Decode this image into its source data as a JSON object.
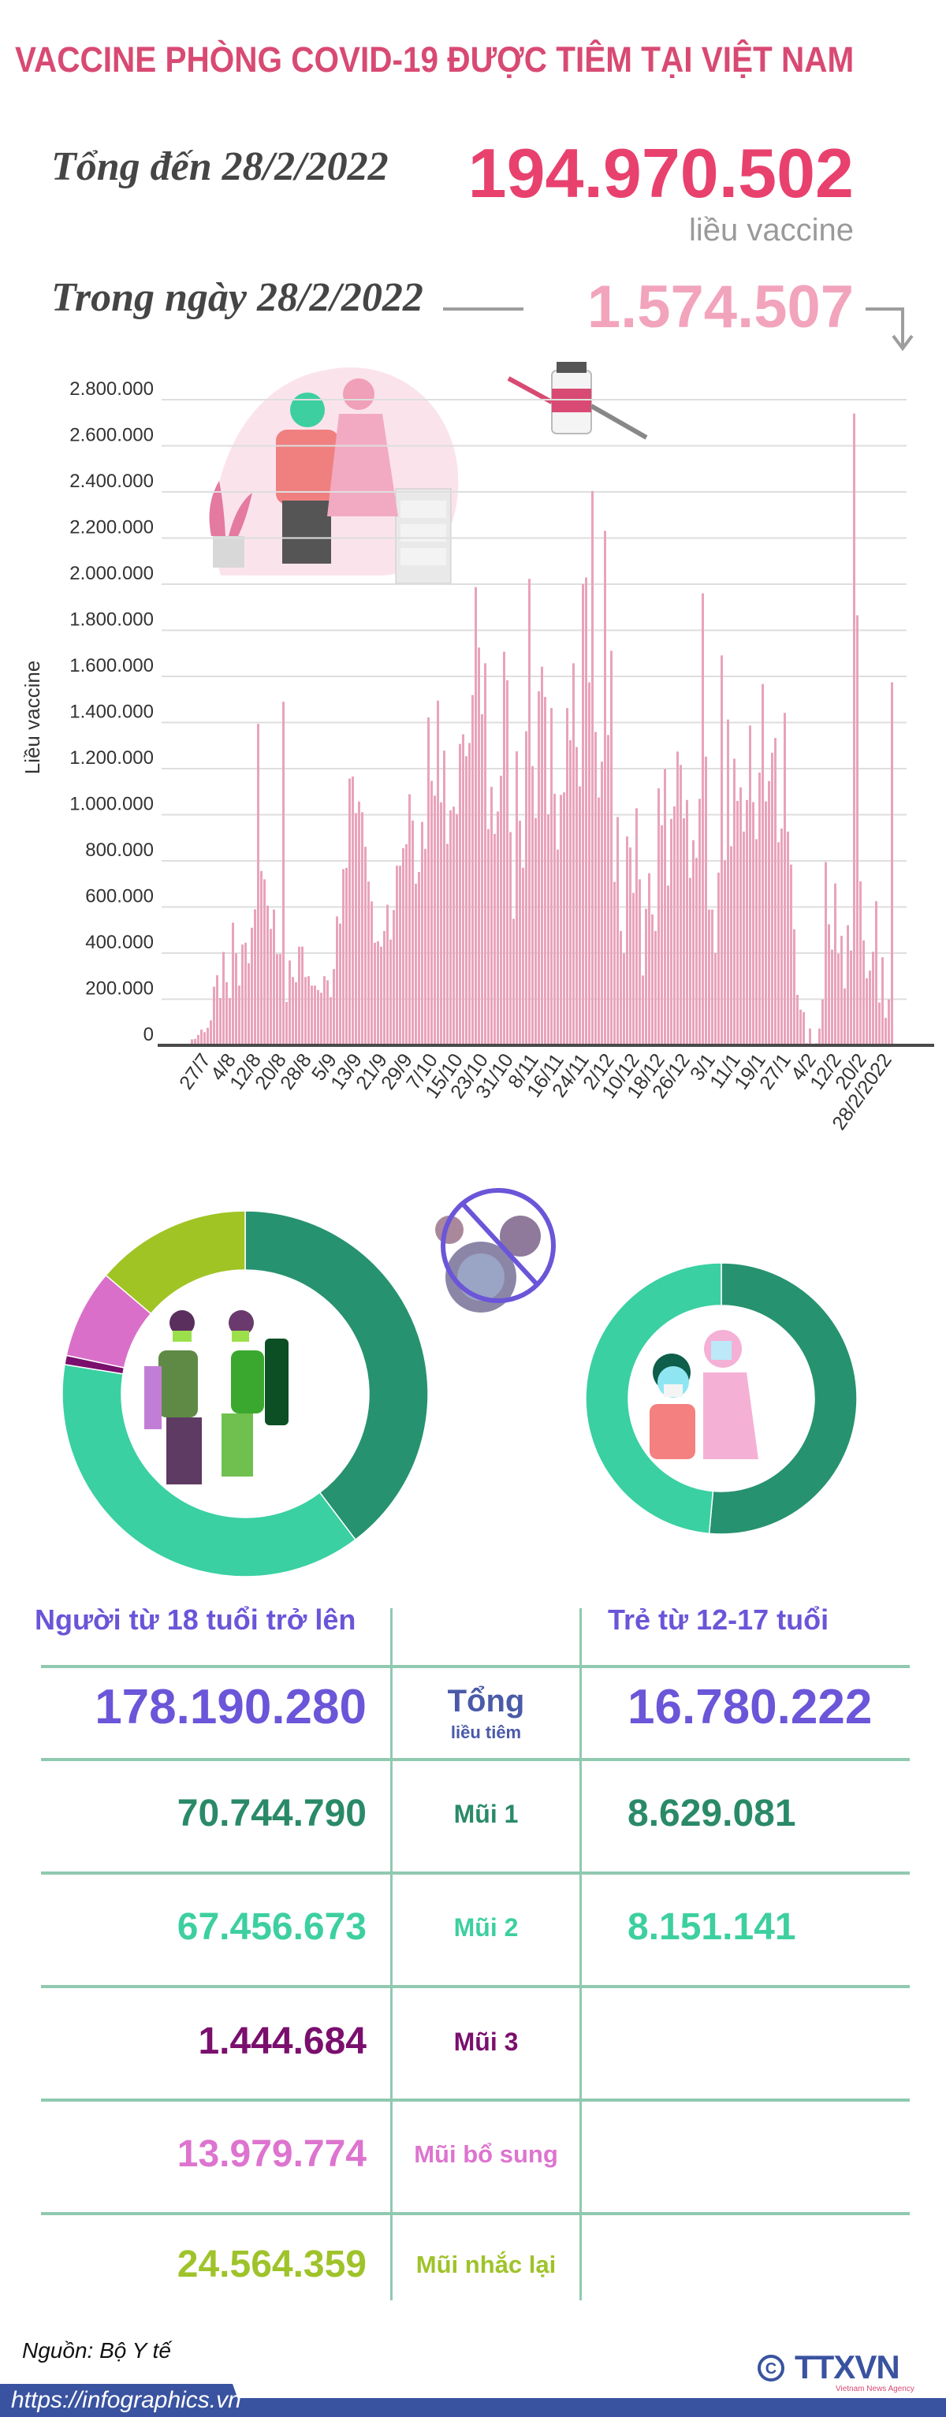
{
  "header": {
    "title": "VACCINE PHÒNG COVID-19 ĐƯỢC TIÊM TẠI VIỆT NAM",
    "total_label": "Tổng đến 28/2/2022",
    "total_value": "194.970.502",
    "total_unit": "liều vaccine",
    "daily_label": "Trong ngày 28/2/2022",
    "daily_value": "1.574.507",
    "colors": {
      "title": "#d84a73",
      "total": "#e8416e",
      "daily": "#f2a4bc"
    }
  },
  "chart_data": {
    "type": "bar",
    "ylabel": "Liều vaccine",
    "xlabel": "",
    "ylim": [
      0,
      2800000
    ],
    "grid": true,
    "yticks": [
      0,
      200000,
      400000,
      600000,
      800000,
      1000000,
      1200000,
      1400000,
      1600000,
      1800000,
      2000000,
      2200000,
      2400000,
      2600000,
      2800000
    ],
    "ytick_labels": [
      "0",
      "200.000",
      "400.000",
      "600.000",
      "800.000",
      "1.000.000",
      "1.200.000",
      "1.400.000",
      "1.600.000",
      "1.800.000",
      "2.000.000",
      "2.200.000",
      "2.400.000",
      "2.600.000",
      "2.800.000"
    ],
    "xtick_labels": [
      "27/7",
      "4/8",
      "12/8",
      "20/8",
      "28/8",
      "5/9",
      "13/9",
      "21/9",
      "29/9",
      "7/10",
      "15/10",
      "23/10",
      "31/10",
      "8/11",
      "16/11",
      "24/11",
      "2/12",
      "10/12",
      "18/12",
      "26/12",
      "3/1",
      "11/1",
      "19/1",
      "27/1",
      "4/2",
      "12/2",
      "20/2",
      "28/2/2022"
    ],
    "bar_color": "#e9a3bb",
    "values": [
      26000,
      28000,
      45000,
      68000,
      57000,
      76000,
      108000,
      254000,
      304000,
      205000,
      405000,
      274000,
      205000,
      532000,
      399000,
      259000,
      437000,
      445000,
      356000,
      510000,
      590000,
      1394000,
      756000,
      720000,
      606000,
      505000,
      589000,
      396000,
      396000,
      1490000,
      188000,
      368000,
      296000,
      274000,
      428000,
      428000,
      296000,
      300000,
      259000,
      259000,
      240000,
      228000,
      300000,
      282000,
      209000,
      331000,
      559000,
      528000,
      764000,
      770000,
      1157000,
      1166000,
      1007000,
      1057000,
      1011000,
      861000,
      710000,
      624000,
      445000,
      451000,
      428000,
      496000,
      610000,
      459000,
      587000,
      779000,
      779000,
      855000,
      872000,
      1089000,
      975000,
      701000,
      752000,
      969000,
      852000,
      1422000,
      1147000,
      1083000,
      1495000,
      1054000,
      1278000,
      874000,
      1019000,
      1035000,
      1003000,
      1307000,
      1349000,
      1254000,
      1311000,
      1519000,
      1987000,
      1725000,
      1436000,
      1657000,
      938000,
      1121000,
      917000,
      1014000,
      1169000,
      1707000,
      1583000,
      925000,
      549000,
      1275000,
      974000,
      770000,
      1362000,
      2023000,
      1211000,
      986000,
      1535000,
      1642000,
      1511000,
      1001000,
      1463000,
      1091000,
      849000,
      1086000,
      1097000,
      1463000,
      1323000,
      1657000,
      1294000,
      1123000,
      2000000,
      2029000,
      1574000,
      2404000,
      1359000,
      1075000,
      1230000,
      2231000,
      1346000,
      1711000,
      709000,
      990000,
      496000,
      399000,
      906000,
      858000,
      661000,
      1028000,
      720000,
      303000,
      592000,
      746000,
      568000,
      496000,
      1115000,
      954000,
      1198000,
      693000,
      982000,
      1036000,
      1274000,
      1216000,
      985000,
      1064000,
      726000,
      890000,
      813000,
      1069000,
      1960000,
      1252000,
      589000,
      589000,
      400000,
      749000,
      1691000,
      802000,
      1413000,
      863000,
      1243000,
      1060000,
      1119000,
      927000,
      1064000,
      1387000,
      1055000,
      894000,
      1183000,
      1567000,
      1058000,
      1146000,
      1269000,
      1333000,
      881000,
      940000,
      1442000,
      927000,
      784000,
      503000,
      219000,
      155000,
      144000,
      9000,
      73000,
      0,
      9000,
      73000,
      199000,
      795000,
      525000,
      415000,
      702000,
      397000,
      475000,
      247000,
      521000,
      411000,
      2740000,
      1865000,
      711000,
      455000,
      291000,
      324000,
      406000,
      625000,
      186000,
      382000,
      119000,
      199000,
      1574507
    ]
  },
  "table": {
    "adult_header": "Người từ 18 tuổi trở lên",
    "child_header": "Trẻ từ 12-17 tuổi",
    "header_color": "#6b55d8",
    "rows": [
      {
        "label": "Tổng",
        "sublabel": "liều tiêm",
        "adult": "178.190.280",
        "child": "16.780.222",
        "color": "#6b55d8",
        "label_color": "#4a5aa8"
      },
      {
        "label": "Mũi 1",
        "adult": "70.744.790",
        "child": "8.629.081",
        "color": "#2a8a68",
        "label_color": "#2a8a68"
      },
      {
        "label": "Mũi 2",
        "adult": "67.456.673",
        "child": "8.151.141",
        "color": "#3dcfa0",
        "label_color": "#3dcfa0"
      },
      {
        "label": "Mũi 3",
        "adult": "1.444.684",
        "color": "#7a0f6e",
        "label_color": "#7a0f6e"
      },
      {
        "label": "Mũi bổ sung",
        "adult": "13.979.774",
        "color": "#dd74cf",
        "label_color": "#dd74cf"
      },
      {
        "label": "Mũi nhắc lại",
        "adult": "24.564.359",
        "color": "#9fc32a",
        "label_color": "#9fc32a"
      }
    ]
  },
  "donuts": {
    "adult_colors": [
      "#27926f",
      "#3ad0a1",
      "#7a0f6e",
      "#d96fc9",
      "#a0c424"
    ],
    "child_colors": [
      "#27926f",
      "#3ad0a1"
    ]
  },
  "footer": {
    "source": "Nguồn: Bộ Y tế",
    "url": "https://infographics.vn",
    "logo": "TTXVN",
    "logo_sub": "Vietnam News Agency",
    "bar_color": "#3a53a0"
  }
}
